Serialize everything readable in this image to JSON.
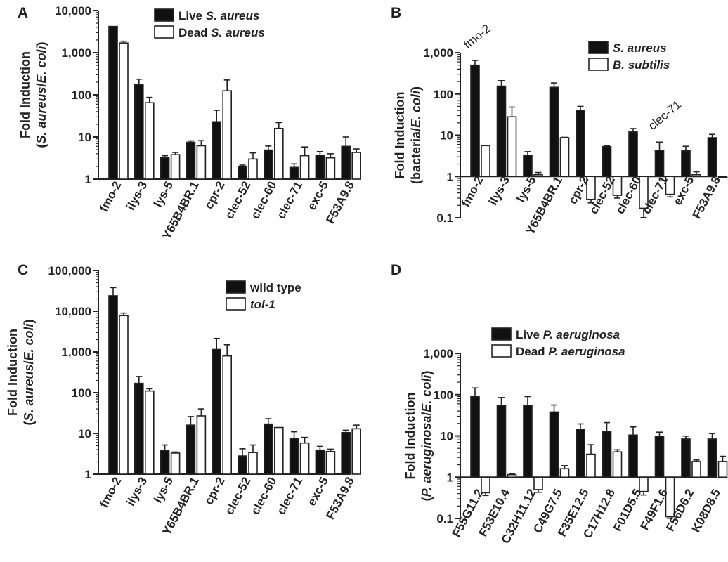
{
  "colors": {
    "filled": "#111111",
    "open": "#ffffff",
    "stroke": "#222222"
  },
  "chart_data": [
    {
      "panel": "A",
      "type": "bar",
      "scale": "log",
      "ylim": [
        1,
        10000
      ],
      "yticks": [
        "1",
        "10",
        "100",
        "1,000",
        "10,000"
      ],
      "ylabel_lines": [
        "Fold Induction",
        "(S. aureus/E. coli)"
      ],
      "categories": [
        "fmo-2",
        "ilys-3",
        "lys-5",
        "Y65B4BR.1",
        "cpr-2",
        "clec-52",
        "clec-60",
        "clec-71",
        "exc-5",
        "F53A9.8"
      ],
      "series": [
        {
          "name": "Live S. aureus",
          "style": "filled",
          "values": [
            4200,
            175,
            3.2,
            7.5,
            23,
            2.0,
            4.9,
            1.9,
            3.7,
            6.0
          ],
          "errors": [
            0,
            60,
            0.4,
            0.6,
            20,
            0.15,
            1.2,
            0.4,
            0.8,
            4
          ]
        },
        {
          "name": "Dead S. aureus",
          "style": "open",
          "values": [
            1700,
            65,
            3.8,
            6.2,
            125,
            3.0,
            16,
            3.6,
            3.2,
            4.3
          ],
          "errors": [
            170,
            22,
            0.5,
            2.0,
            100,
            1.2,
            6,
            2.2,
            0.8,
            0.9
          ]
        }
      ],
      "annotations": []
    },
    {
      "panel": "B",
      "type": "bar",
      "scale": "log",
      "ylim": [
        0.1,
        1000
      ],
      "yticks": [
        "0.1",
        "1",
        "10",
        "100",
        "1,000"
      ],
      "ylabel_lines": [
        "Fold Induction",
        "(bacteria/E. coli)"
      ],
      "categories": [
        "fmo-2",
        "ilys-3",
        "lys-5",
        "Y65B4BR.1",
        "cpr-2",
        "clec-52",
        "clec-60",
        "clec-71",
        "exc-5",
        "F53A9.8"
      ],
      "series": [
        {
          "name": "S. aureus",
          "style": "filled",
          "values": [
            500,
            155,
            3.3,
            145,
            40,
            5.3,
            12,
            4.3,
            4.2,
            8.7
          ],
          "errors": [
            150,
            55,
            0.7,
            40,
            10,
            0.2,
            2.5,
            2.5,
            1.2,
            1.8
          ]
        },
        {
          "name": "B. subtilis",
          "style": "open",
          "values": [
            5.6,
            28,
            1.1,
            8.7,
            0.28,
            0.35,
            0.17,
            0.37,
            1.1,
            0.97
          ],
          "errors": [
            0,
            20,
            0.15,
            0.2,
            0.05,
            0.05,
            0.07,
            0.05,
            0.2,
            0.02
          ]
        }
      ],
      "annotations": [
        {
          "text": "fmo-2",
          "category": 0,
          "value": 1200
        },
        {
          "text": "clec-71",
          "category": 7,
          "value": 13
        }
      ]
    },
    {
      "panel": "C",
      "type": "bar",
      "scale": "log",
      "ylim": [
        1,
        100000
      ],
      "yticks": [
        "1",
        "10",
        "100",
        "1,000",
        "10,000",
        "100,000"
      ],
      "ylabel_lines": [
        "Fold Induction",
        "(S. aureus/E. coli)"
      ],
      "categories": [
        "fmo-2",
        "ilys-3",
        "lys-5",
        "Y65B4BR.1",
        "cpr-2",
        "clec-52",
        "clec-60",
        "clec-71",
        "exc-5",
        "F53A9.8"
      ],
      "series": [
        {
          "name": "wild type",
          "style": "filled",
          "values": [
            24000,
            170,
            3.8,
            16,
            1150,
            2.8,
            17,
            7.5,
            3.9,
            10.5
          ],
          "errors": [
            14000,
            80,
            1.4,
            10,
            1000,
            1.4,
            6,
            3.5,
            0.9,
            1.5
          ]
        },
        {
          "name": "tol-1",
          "style": "open",
          "values": [
            7800,
            110,
            3.3,
            27,
            800,
            3.4,
            14,
            5.8,
            3.6,
            13
          ],
          "errors": [
            1200,
            15,
            0.2,
            13,
            700,
            1.8,
            0,
            2.2,
            0.5,
            3
          ]
        }
      ],
      "annotations": []
    },
    {
      "panel": "D",
      "type": "bar",
      "scale": "log",
      "ylim": [
        0.1,
        1000
      ],
      "yticks": [
        "0.1",
        "1",
        "10",
        "100",
        "1,000"
      ],
      "ylabel_lines": [
        "Fold Induction",
        "(P. aeruginosa/E. coli)"
      ],
      "categories": [
        "F55G11.2",
        "F53E10.4",
        "C32H11.12",
        "C49G7.5",
        "F35E12.5",
        "C17H12.8",
        "F01D5.5",
        "F49F1.6",
        "F56D6.2",
        "K08D8.5"
      ],
      "series": [
        {
          "name": "Live P. aeruginosa",
          "style": "filled",
          "values": [
            90,
            55,
            55,
            38,
            14.5,
            13,
            10.5,
            9.8,
            8.4,
            8.4
          ],
          "errors": [
            55,
            30,
            35,
            18,
            5,
            8,
            6,
            2.5,
            1.5,
            3
          ]
        },
        {
          "name": "Dead P. aeruginosa",
          "style": "open",
          "values": [
            0.42,
            1.15,
            0.5,
            1.6,
            3.6,
            4.1,
            0.45,
            0.11,
            2.4,
            2.4
          ],
          "errors": [
            0.06,
            0.06,
            0.07,
            0.3,
            2.5,
            0.5,
            0.08,
            0.01,
            0.2,
            0.8
          ]
        }
      ],
      "annotations": []
    }
  ]
}
